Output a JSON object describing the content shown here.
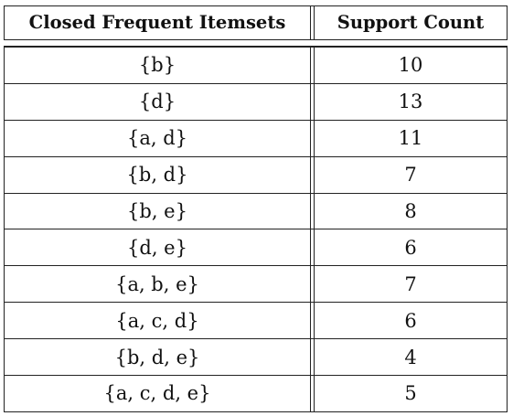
{
  "table": {
    "headers": {
      "itemsets": "Closed Frequent Itemsets",
      "support": "Support Count"
    },
    "rows": [
      {
        "itemset": "{b}",
        "support": "10"
      },
      {
        "itemset": "{d}",
        "support": "13"
      },
      {
        "itemset": "{a, d}",
        "support": "11"
      },
      {
        "itemset": "{b, d}",
        "support": "7"
      },
      {
        "itemset": "{b, e}",
        "support": "8"
      },
      {
        "itemset": "{d, e}",
        "support": "6"
      },
      {
        "itemset": "{a, b, e}",
        "support": "7"
      },
      {
        "itemset": "{a, c, d}",
        "support": "6"
      },
      {
        "itemset": "{b, d, e}",
        "support": "4"
      },
      {
        "itemset": "{a, c, d, e}",
        "support": "5"
      }
    ]
  }
}
